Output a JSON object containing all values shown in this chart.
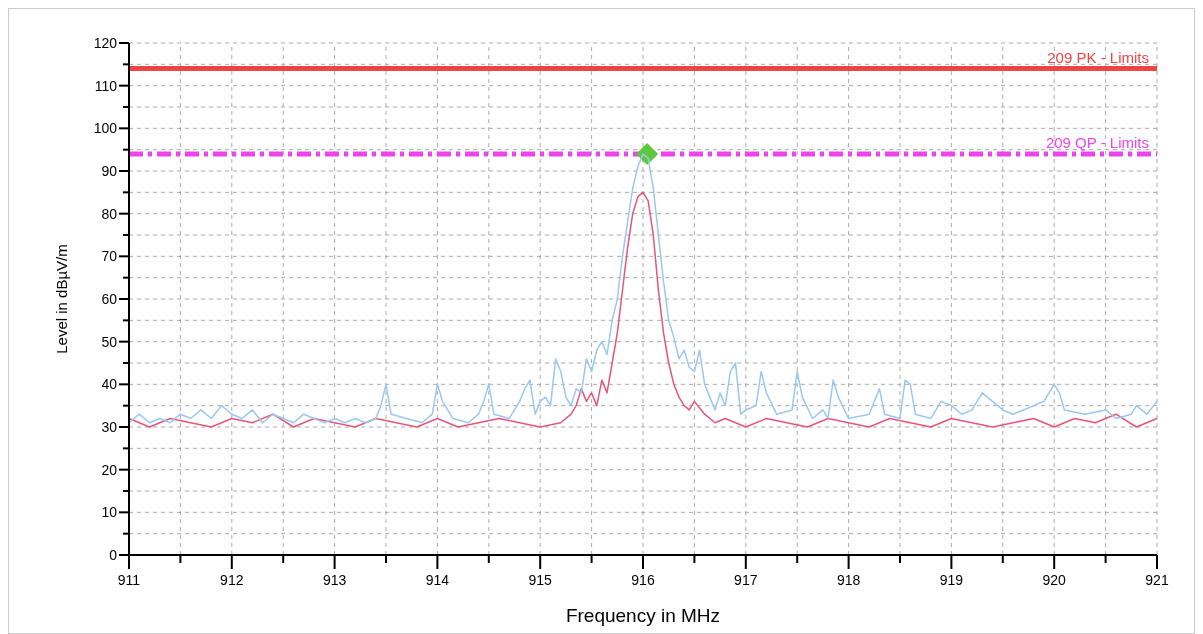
{
  "chart_data": {
    "type": "line",
    "xlabel": "Frequency in MHz",
    "ylabel": "Level in dBµV/m",
    "xlim": [
      911,
      921
    ],
    "ylim": [
      0,
      120
    ],
    "xticks": [
      911,
      {
        "value": 911.5,
        "label": null
      },
      912,
      {
        "value": 912.5,
        "label": null
      },
      913,
      {
        "value": 913.5,
        "label": null
      },
      914,
      {
        "value": 914.5,
        "label": null
      },
      915,
      {
        "value": 915.5,
        "label": null
      },
      916,
      {
        "value": 916.5,
        "label": null
      },
      917,
      {
        "value": 917.5,
        "label": null
      },
      918,
      {
        "value": 918.5,
        "label": null
      },
      919,
      {
        "value": 919.5,
        "label": null
      },
      920,
      {
        "value": 920.5,
        "label": null
      },
      921
    ],
    "yticks": [
      0,
      {
        "value": 5,
        "label": null
      },
      10,
      {
        "value": 15,
        "label": null
      },
      20,
      {
        "value": 25,
        "label": null
      },
      30,
      {
        "value": 35,
        "label": null
      },
      40,
      {
        "value": 45,
        "label": null
      },
      50,
      {
        "value": 55,
        "label": null
      },
      60,
      {
        "value": 65,
        "label": null
      },
      70,
      {
        "value": 75,
        "label": null
      },
      80,
      {
        "value": 85,
        "label": null
      },
      90,
      {
        "value": 95,
        "label": null
      },
      100,
      {
        "value": 105,
        "label": null
      },
      110,
      {
        "value": 115,
        "label": null
      },
      120
    ],
    "grid": true,
    "marker": "none",
    "ref_lines": [
      {
        "axis": "y",
        "value": 114,
        "label": "209 PK - Limits",
        "color": "#ee4444",
        "line_style": "solid"
      },
      {
        "axis": "y",
        "value": 94,
        "label": "209 QP - Limits",
        "color": "#ee44ee",
        "line_style": "dashed"
      }
    ],
    "series": [
      {
        "color": "#e8557a",
        "x": [
          911.0,
          911.2,
          911.4,
          911.6,
          911.8,
          912.0,
          912.2,
          912.4,
          912.6,
          912.8,
          913.0,
          913.2,
          913.4,
          913.6,
          913.8,
          914.0,
          914.2,
          914.4,
          914.6,
          914.8,
          915.0,
          915.2,
          915.3,
          915.35,
          915.4,
          915.45,
          915.5,
          915.55,
          915.6,
          915.65,
          915.7,
          915.75,
          915.8,
          915.85,
          915.9,
          915.95,
          916.0,
          916.05,
          916.1,
          916.15,
          916.2,
          916.25,
          916.3,
          916.35,
          916.4,
          916.45,
          916.5,
          916.6,
          916.7,
          916.8,
          917.0,
          917.2,
          917.4,
          917.6,
          917.8,
          918.0,
          918.2,
          918.4,
          918.6,
          918.8,
          919.0,
          919.2,
          919.4,
          919.6,
          919.8,
          920.0,
          920.2,
          920.4,
          920.6,
          920.8,
          921.0
        ],
        "values": [
          32,
          30,
          32,
          31,
          30,
          32,
          31,
          33,
          30,
          32,
          31,
          30,
          32,
          31,
          30,
          32,
          30,
          31,
          32,
          31,
          30,
          31,
          33,
          35,
          39,
          36,
          38,
          35,
          41,
          38,
          45,
          52,
          62,
          72,
          80,
          84,
          85,
          83,
          75,
          62,
          52,
          45,
          40,
          37,
          35,
          34,
          36,
          33,
          31,
          32,
          30,
          32,
          31,
          30,
          32,
          31,
          30,
          32,
          31,
          30,
          32,
          31,
          30,
          31,
          32,
          30,
          32,
          31,
          33,
          30,
          32
        ]
      },
      {
        "color": "#99c8f2",
        "x": [
          911.0,
          911.1,
          911.2,
          911.3,
          911.4,
          911.5,
          911.6,
          911.7,
          911.8,
          911.9,
          912.0,
          912.1,
          912.2,
          912.3,
          912.4,
          912.5,
          912.6,
          912.7,
          912.8,
          912.9,
          913.0,
          913.1,
          913.2,
          913.3,
          913.4,
          913.45,
          913.5,
          913.55,
          913.7,
          913.85,
          913.95,
          914.0,
          914.05,
          914.15,
          914.3,
          914.4,
          914.45,
          914.5,
          914.55,
          914.7,
          914.8,
          914.85,
          914.9,
          914.95,
          915.0,
          915.05,
          915.1,
          915.15,
          915.2,
          915.25,
          915.3,
          915.35,
          915.4,
          915.45,
          915.5,
          915.55,
          915.6,
          915.65,
          915.7,
          915.75,
          915.8,
          915.85,
          915.9,
          915.95,
          916.0,
          916.05,
          916.1,
          916.15,
          916.2,
          916.25,
          916.3,
          916.35,
          916.4,
          916.45,
          916.5,
          916.55,
          916.6,
          916.65,
          916.7,
          916.75,
          916.8,
          916.85,
          916.9,
          916.95,
          917.0,
          917.1,
          917.15,
          917.2,
          917.3,
          917.45,
          917.5,
          917.55,
          917.65,
          917.75,
          917.8,
          917.85,
          917.9,
          918.0,
          918.2,
          918.3,
          918.35,
          918.5,
          918.55,
          918.6,
          918.65,
          918.8,
          918.9,
          919.0,
          919.1,
          919.2,
          919.3,
          919.4,
          919.5,
          919.6,
          919.7,
          919.9,
          920.0,
          920.05,
          920.1,
          920.3,
          920.5,
          920.6,
          920.75,
          920.8,
          920.9,
          921.0
        ],
        "values": [
          31,
          33,
          31,
          32,
          31,
          33,
          32,
          34,
          32,
          35,
          33,
          32,
          34,
          31,
          33,
          32,
          31,
          33,
          32,
          31,
          32,
          31,
          32,
          31,
          32,
          35,
          40,
          33,
          32,
          31,
          33,
          40,
          36,
          32,
          31,
          33,
          36,
          40,
          33,
          32,
          36,
          39,
          41,
          33,
          36,
          37,
          35,
          46,
          43,
          37,
          35,
          39,
          38,
          46,
          43,
          48,
          50,
          47,
          55,
          60,
          70,
          78,
          86,
          91,
          94,
          93,
          86,
          75,
          64,
          55,
          51,
          46,
          48,
          44,
          43,
          48,
          40,
          37,
          34,
          38,
          35,
          43,
          45,
          33,
          34,
          35,
          43,
          38,
          33,
          34,
          43,
          37,
          32,
          34,
          32,
          41,
          37,
          32,
          33,
          39,
          33,
          32,
          41,
          40,
          33,
          32,
          36,
          35,
          33,
          34,
          38,
          36,
          34,
          33,
          34,
          36,
          40,
          38,
          34,
          33,
          34,
          32,
          33,
          35,
          33,
          36
        ]
      },
      {
        "type": "scatter",
        "marker": "diamond",
        "color": "#5cc83c",
        "x": [
          916.04
        ],
        "values": [
          94
        ]
      }
    ]
  }
}
